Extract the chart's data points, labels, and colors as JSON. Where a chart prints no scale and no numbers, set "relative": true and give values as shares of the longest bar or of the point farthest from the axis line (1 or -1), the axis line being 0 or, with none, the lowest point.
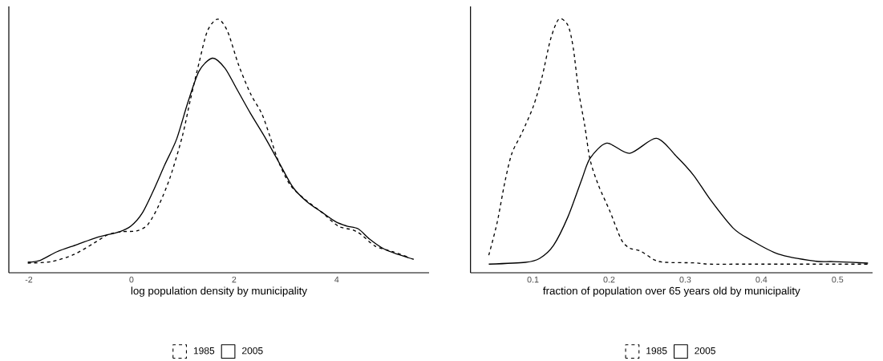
{
  "chart_data": [
    {
      "type": "line",
      "xlabel": "log population density by municipality",
      "relative": true,
      "xlim": [
        -2.39,
        5.8
      ],
      "xticks": [
        -2,
        0,
        2,
        4
      ],
      "legend": "bottom",
      "grid": false,
      "series": [
        {
          "name": "1985",
          "color": "#000000",
          "line_style": "dashed",
          "x": [
            -2.02,
            -1.56,
            -1.12,
            -0.73,
            -0.45,
            -0.18,
            0.1,
            0.32,
            0.54,
            0.76,
            0.99,
            1.15,
            1.32,
            1.48,
            1.68,
            1.87,
            2.09,
            2.32,
            2.54,
            2.7,
            2.87,
            3.09,
            3.37,
            3.7,
            4.03,
            4.31,
            4.48,
            4.75,
            5.09,
            5.42
          ],
          "values": [
            0.038,
            0.044,
            0.072,
            0.117,
            0.151,
            0.162,
            0.165,
            0.19,
            0.269,
            0.38,
            0.537,
            0.684,
            0.83,
            0.953,
            1.0,
            0.953,
            0.818,
            0.706,
            0.627,
            0.537,
            0.436,
            0.347,
            0.291,
            0.24,
            0.184,
            0.169,
            0.15,
            0.105,
            0.083,
            0.06
          ]
        },
        {
          "name": "2005",
          "color": "#000000",
          "line_style": "solid",
          "x": [
            -2.02,
            -1.78,
            -1.45,
            -1.06,
            -0.68,
            -0.23,
            -0.01,
            0.21,
            0.43,
            0.65,
            0.88,
            1.1,
            1.32,
            1.58,
            1.82,
            2.04,
            2.32,
            2.59,
            2.87,
            3.15,
            3.42,
            3.7,
            3.98,
            4.2,
            4.42,
            4.64,
            4.92,
            5.2,
            5.5
          ],
          "values": [
            0.042,
            0.049,
            0.083,
            0.111,
            0.139,
            0.162,
            0.184,
            0.235,
            0.325,
            0.426,
            0.527,
            0.672,
            0.796,
            0.846,
            0.807,
            0.729,
            0.628,
            0.538,
            0.437,
            0.336,
            0.28,
            0.24,
            0.201,
            0.184,
            0.173,
            0.133,
            0.094,
            0.072,
            0.053
          ]
        }
      ]
    },
    {
      "type": "line",
      "xlabel": "fraction of population over 65 years old by municipality",
      "relative": true,
      "xlim": [
        0.018,
        0.546
      ],
      "xticks": [
        0.1,
        0.2,
        0.3,
        0.4,
        0.5
      ],
      "legend": "bottom",
      "grid": false,
      "series": [
        {
          "name": "1985",
          "color": "#000000",
          "line_style": "dashed",
          "x": [
            0.042,
            0.053,
            0.063,
            0.072,
            0.083,
            0.09,
            0.101,
            0.112,
            0.123,
            0.134,
            0.146,
            0.153,
            0.16,
            0.168,
            0.175,
            0.186,
            0.201,
            0.216,
            0.227,
            0.241,
            0.26,
            0.274,
            0.311,
            0.333,
            0.385,
            0.54
          ],
          "values": [
            0.069,
            0.198,
            0.356,
            0.468,
            0.536,
            0.581,
            0.66,
            0.772,
            0.919,
            1.0,
            0.975,
            0.885,
            0.716,
            0.581,
            0.446,
            0.345,
            0.243,
            0.131,
            0.097,
            0.086,
            0.05,
            0.041,
            0.039,
            0.034,
            0.034,
            0.034
          ]
        },
        {
          "name": "2005",
          "color": "#000000",
          "line_style": "solid",
          "x": [
            0.042,
            0.09,
            0.109,
            0.127,
            0.146,
            0.164,
            0.175,
            0.197,
            0.227,
            0.262,
            0.289,
            0.311,
            0.333,
            0.363,
            0.385,
            0.422,
            0.47,
            0.495,
            0.54
          ],
          "values": [
            0.034,
            0.041,
            0.057,
            0.108,
            0.221,
            0.367,
            0.451,
            0.511,
            0.471,
            0.53,
            0.457,
            0.384,
            0.288,
            0.176,
            0.131,
            0.074,
            0.046,
            0.044,
            0.038
          ]
        }
      ]
    }
  ]
}
